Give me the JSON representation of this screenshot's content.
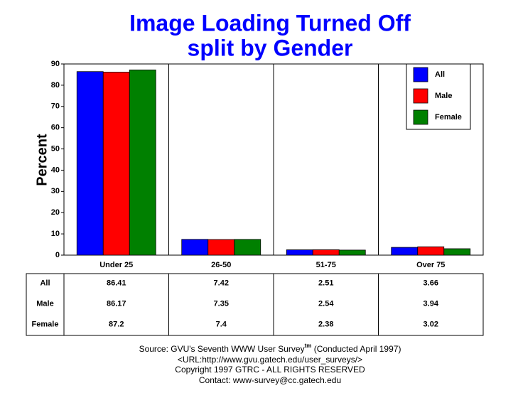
{
  "chart_data": {
    "type": "bar",
    "title": [
      "Image Loading Turned Off",
      "split by Gender"
    ],
    "y_label": "Percent",
    "categories": [
      "Under 25",
      "26-50",
      "51-75",
      "Over 75"
    ],
    "series": [
      {
        "name": "All",
        "color": "#0000ff",
        "values": [
          86.41,
          7.42,
          2.51,
          3.66
        ]
      },
      {
        "name": "Male",
        "color": "#ff0000",
        "values": [
          86.17,
          7.35,
          2.54,
          3.94
        ]
      },
      {
        "name": "Female",
        "color": "#008000",
        "values": [
          87.2,
          7.4,
          2.38,
          3.02
        ]
      }
    ],
    "ylim": [
      0,
      90
    ],
    "yticks": [
      0,
      10,
      20,
      30,
      40,
      50,
      60,
      70,
      80,
      90
    ],
    "legend": "upper right",
    "source": {
      "text": "Source: GVU's Seventh WWW User Survey",
      "mark": "tm",
      "note": " (Conducted April 1997)"
    },
    "footer": [
      "<URL:http://www.gvu.gatech.edu/user_surveys/>",
      "Copyright 1997 GTRC - ALL RIGHTS RESERVED",
      "Contact: www-survey@cc.gatech.edu"
    ]
  }
}
